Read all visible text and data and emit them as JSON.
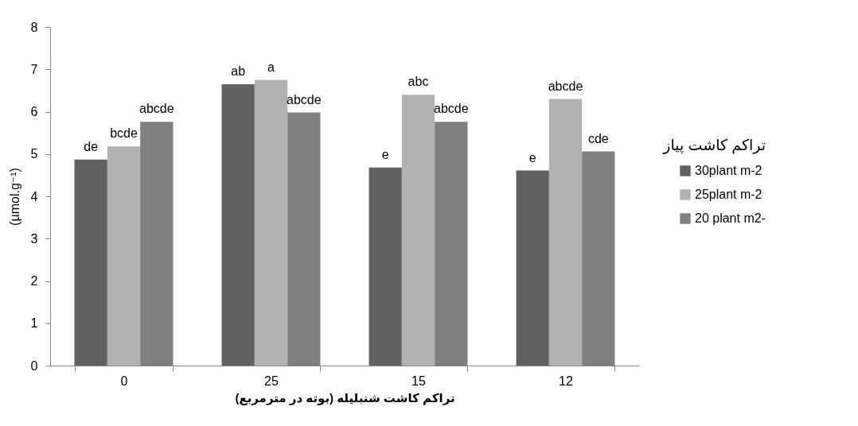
{
  "chart_data": {
    "type": "bar",
    "xlabel": "تراکم کاشت شنبلیله (بوته در مترمربع)",
    "ylabel": "(µmol.g⁻¹)",
    "legend_title": "تراکم کاشت پیاز",
    "legend": "right",
    "categories": [
      "0",
      "25",
      "15",
      "12"
    ],
    "series": [
      {
        "name": "30plant m-2",
        "color": "#616161",
        "values": [
          4.87,
          6.65,
          4.68,
          4.61
        ],
        "value_labels": [
          "de",
          "ab",
          "e",
          "e"
        ]
      },
      {
        "name": "25plant m-2",
        "color": "#b2b2b2",
        "values": [
          5.18,
          6.75,
          6.4,
          6.3
        ],
        "value_labels": [
          "bcde",
          "a",
          "abc",
          "abcde"
        ]
      },
      {
        "name": "20 plant m2-",
        "color": "#808080",
        "values": [
          5.76,
          5.98,
          5.76,
          5.06
        ],
        "value_labels": [
          "abcde",
          "abcde",
          "abcde",
          "cde"
        ]
      }
    ],
    "ylim": [
      0,
      8
    ],
    "yticks": [
      0,
      1,
      2,
      3,
      4,
      5,
      6,
      7,
      8
    ],
    "grid": false
  }
}
